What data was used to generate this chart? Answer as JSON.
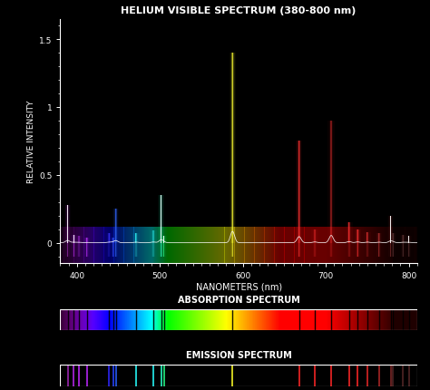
{
  "title": "HELIUM VISIBLE SPECTRUM (380-800 nm)",
  "xlabel": "NANOMETERS (nm)",
  "ylabel": "RELATIVE INTENSITY",
  "xlim": [
    380,
    810
  ],
  "ylim_main": [
    -0.15,
    1.65
  ],
  "yticks": [
    0.0,
    0.5,
    1.0,
    1.5
  ],
  "xticks": [
    400,
    500,
    600,
    700,
    800
  ],
  "bg_color": "#000000",
  "emission_lines": [
    {
      "wl": 388.9,
      "intensity": 0.28
    },
    {
      "wl": 396.5,
      "intensity": 0.06
    },
    {
      "wl": 402.6,
      "intensity": 0.05
    },
    {
      "wl": 412.1,
      "intensity": 0.04
    },
    {
      "wl": 438.8,
      "intensity": 0.07
    },
    {
      "wl": 443.8,
      "intensity": 0.04
    },
    {
      "wl": 447.1,
      "intensity": 0.25
    },
    {
      "wl": 471.3,
      "intensity": 0.07
    },
    {
      "wl": 492.2,
      "intensity": 0.09
    },
    {
      "wl": 501.6,
      "intensity": 0.35
    },
    {
      "wl": 504.8,
      "intensity": 0.05
    },
    {
      "wl": 587.6,
      "intensity": 1.4
    },
    {
      "wl": 667.8,
      "intensity": 0.75
    },
    {
      "wl": 686.7,
      "intensity": 0.1
    },
    {
      "wl": 706.5,
      "intensity": 0.9
    },
    {
      "wl": 728.1,
      "intensity": 0.15
    },
    {
      "wl": 738.4,
      "intensity": 0.1
    },
    {
      "wl": 750.0,
      "intensity": 0.08
    },
    {
      "wl": 764.0,
      "intensity": 0.07
    },
    {
      "wl": 778.0,
      "intensity": 0.2
    },
    {
      "wl": 781.0,
      "intensity": 0.07
    },
    {
      "wl": 793.0,
      "intensity": 0.06
    },
    {
      "wl": 800.0,
      "intensity": 0.05
    }
  ],
  "absorption_label": "ABSORPTION SPECTRUM",
  "emission_label": "EMISSION SPECTRUM",
  "wl_min": 380,
  "wl_max": 810,
  "num_bg_bars": 430
}
